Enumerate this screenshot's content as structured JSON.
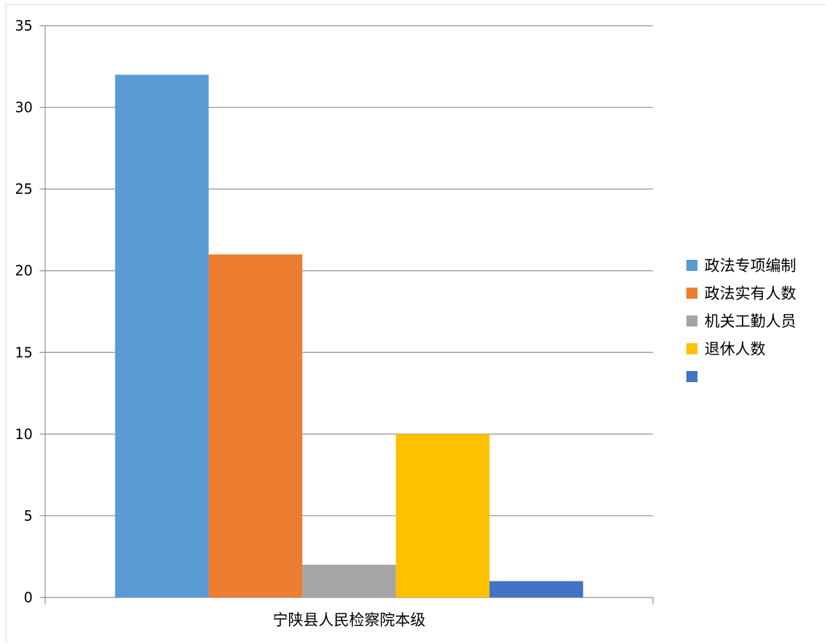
{
  "chart_data": {
    "type": "bar",
    "title": "",
    "xlabel": "",
    "ylabel": "",
    "categories": [
      "宁陕县人民检察院本级"
    ],
    "ylim": [
      0,
      35
    ],
    "yticks": [
      0,
      5,
      10,
      15,
      20,
      25,
      30,
      35
    ],
    "grid": true,
    "legend_placement": "right",
    "series": [
      {
        "name": "政法专项编制",
        "values": [
          32
        ],
        "color": "#5B9BD5"
      },
      {
        "name": "政法实有人数",
        "values": [
          21
        ],
        "color": "#ED7D31"
      },
      {
        "name": "机关工勤人员",
        "values": [
          2
        ],
        "color": "#A5A5A5"
      },
      {
        "name": "退休人数",
        "values": [
          10
        ],
        "color": "#FFC000"
      },
      {
        "name": "",
        "values": [
          1
        ],
        "color": "#4472C4"
      }
    ]
  }
}
